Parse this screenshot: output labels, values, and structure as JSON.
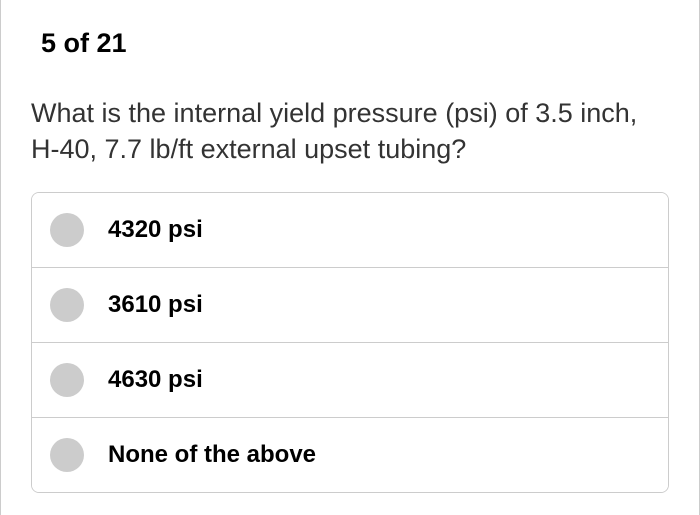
{
  "progress": {
    "current": 5,
    "total": 21,
    "display": "5 of 21"
  },
  "question": {
    "text": "What is the internal yield pressure (psi) of 3.5 inch, H-40, 7.7 lb/ft external upset tubing?"
  },
  "options": [
    {
      "label": "4320 psi"
    },
    {
      "label": "3610 psi"
    },
    {
      "label": "4630 psi"
    },
    {
      "label": "None of the above"
    }
  ],
  "styling": {
    "background_color": "#ffffff",
    "border_color": "#cccccc",
    "radio_unselected_color": "#cccccc",
    "text_color": "#333333",
    "bold_text_color": "#000000",
    "progress_fontsize": 27,
    "question_fontsize": 27,
    "option_fontsize": 24,
    "border_radius": 8
  }
}
